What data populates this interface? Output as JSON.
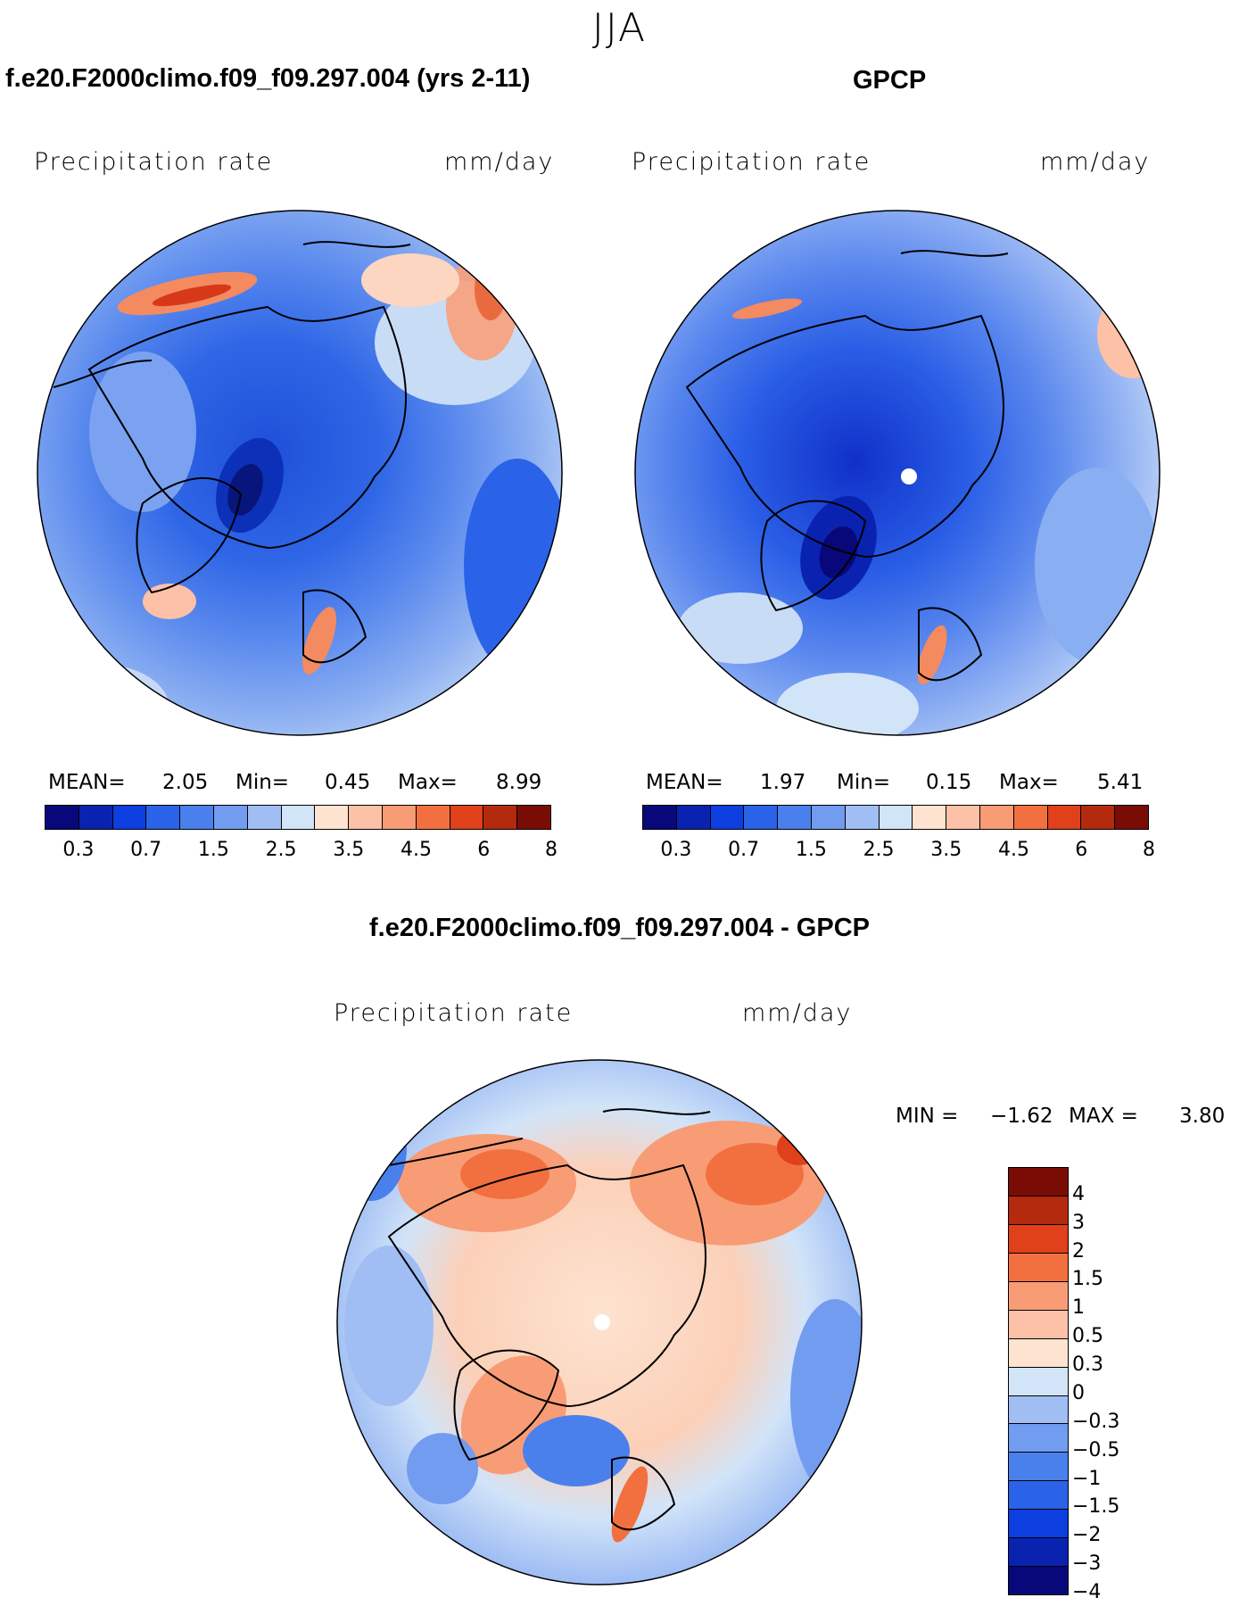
{
  "season": "JJA",
  "panels": [
    {
      "title": "f.e20.F2000climo.f09_f09.297.004 (yrs 2-11)",
      "variable": "Precipitation  rate",
      "units": "mm/day",
      "stats": {
        "mean_label": "MEAN=",
        "mean": "2.05",
        "min_label": "Min=",
        "min": "0.45",
        "max_label": "Max=",
        "max": "8.99"
      }
    },
    {
      "title": "GPCP",
      "variable": "Precipitation  rate",
      "units": "mm/day",
      "stats": {
        "mean_label": "MEAN=",
        "mean": "1.97",
        "min_label": "Min=",
        "min": "0.15",
        "max_label": "Max=",
        "max": "5.41"
      }
    },
    {
      "title": "f.e20.F2000climo.f09_f09.297.004 - GPCP",
      "variable": "Precipitation  rate",
      "units": "mm/day",
      "stats": {
        "min_label": "MIN =",
        "min": "−1.62",
        "max_label": "MAX =",
        "max": "3.80"
      }
    }
  ],
  "abs_colorbar": {
    "colors": [
      "#08087a",
      "#0a22b0",
      "#0c3ee0",
      "#2a63e8",
      "#4a80ec",
      "#729cf0",
      "#a0bef4",
      "#d2e4f8",
      "#fde3d0",
      "#fcc1a6",
      "#f89c76",
      "#f2703f",
      "#e0401a",
      "#b42a0e",
      "#7a0c06"
    ],
    "ticks": [
      "0.3",
      "0.7",
      "1.5",
      "2.5",
      "3.5",
      "4.5",
      "6",
      "8"
    ]
  },
  "diff_colorbar": {
    "colors": [
      "#7a0c06",
      "#b42a0e",
      "#e0401a",
      "#f2703f",
      "#f89c76",
      "#fcc1a6",
      "#fde3d0",
      "#d2e4f8",
      "#a0bef4",
      "#729cf0",
      "#4a80ec",
      "#2a63e8",
      "#0c3ee0",
      "#0a22b0",
      "#08087a"
    ],
    "ticks": [
      "4",
      "3",
      "2",
      "1.5",
      "1",
      "0.5",
      "0.3",
      "0",
      "−0.3",
      "−0.5",
      "−1",
      "−1.5",
      "−2",
      "−3",
      "−4"
    ]
  }
}
